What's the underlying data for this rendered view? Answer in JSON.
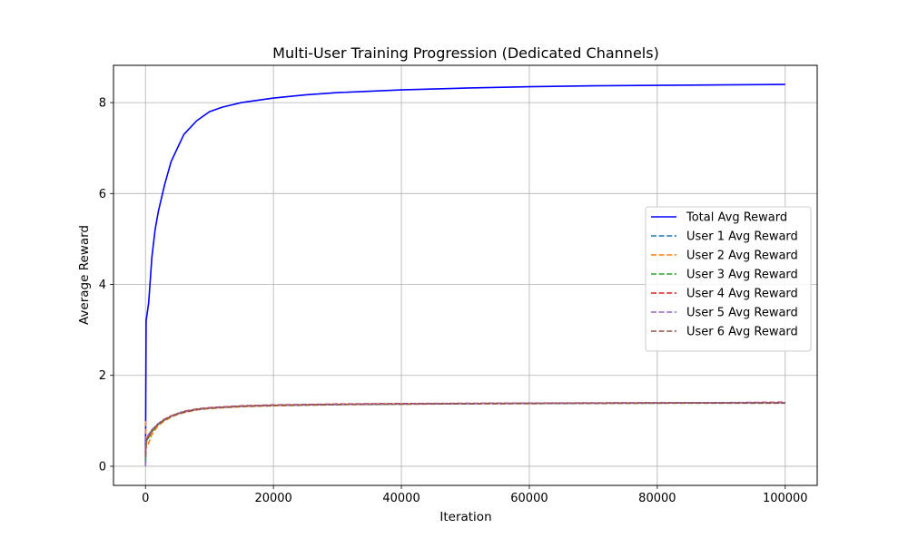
{
  "chart_data": {
    "type": "line",
    "title": "Multi-User Training Progression (Dedicated Channels)",
    "xlabel": "Iteration",
    "ylabel": "Average Reward",
    "xlim": [
      -5000,
      105000
    ],
    "ylim": [
      -0.42,
      8.82
    ],
    "xticks": [
      0,
      20000,
      40000,
      60000,
      80000,
      100000
    ],
    "yticks": [
      0,
      2,
      4,
      6,
      8
    ],
    "grid": true,
    "legend_position": "center-right",
    "series": [
      {
        "name": "Total Avg Reward",
        "color": "#0000ff",
        "style": "solid",
        "x": [
          0,
          100,
          200,
          500,
          1000,
          1500,
          2000,
          3000,
          4000,
          5000,
          6000,
          8000,
          10000,
          12000,
          15000,
          20000,
          25000,
          30000,
          40000,
          50000,
          60000,
          70000,
          80000,
          90000,
          100000
        ],
        "y": [
          0.05,
          3.2,
          3.3,
          3.6,
          4.6,
          5.2,
          5.6,
          6.2,
          6.7,
          7.0,
          7.3,
          7.6,
          7.8,
          7.9,
          8.0,
          8.1,
          8.17,
          8.22,
          8.28,
          8.32,
          8.35,
          8.37,
          8.38,
          8.39,
          8.4
        ]
      },
      {
        "name": "User 1 Avg Reward",
        "color": "#1f77b4",
        "style": "dashed",
        "x": [
          0,
          100,
          300,
          600,
          1000,
          2000,
          3000,
          4000,
          5000,
          6000,
          8000,
          10000,
          15000,
          20000,
          30000,
          40000,
          50000,
          60000,
          70000,
          80000,
          90000,
          100000
        ],
        "y": [
          0.05,
          0.55,
          0.6,
          0.68,
          0.78,
          0.93,
          1.03,
          1.1,
          1.16,
          1.2,
          1.25,
          1.28,
          1.32,
          1.34,
          1.36,
          1.37,
          1.38,
          1.385,
          1.39,
          1.39,
          1.4,
          1.4
        ]
      },
      {
        "name": "User 2 Avg Reward",
        "color": "#ff7f0e",
        "style": "dashed",
        "x": [
          0,
          100,
          300,
          600,
          1000,
          2000,
          3000,
          4000,
          5000,
          6000,
          8000,
          10000,
          15000,
          20000,
          30000,
          40000,
          50000,
          60000,
          70000,
          80000,
          90000,
          100000
        ],
        "y": [
          1.0,
          0.4,
          0.45,
          0.55,
          0.7,
          0.9,
          1.0,
          1.08,
          1.14,
          1.18,
          1.24,
          1.27,
          1.31,
          1.33,
          1.355,
          1.365,
          1.375,
          1.38,
          1.385,
          1.39,
          1.39,
          1.39
        ]
      },
      {
        "name": "User 3 Avg Reward",
        "color": "#2ca02c",
        "style": "dashed",
        "x": [
          0,
          100,
          300,
          600,
          1000,
          2000,
          3000,
          4000,
          5000,
          6000,
          8000,
          10000,
          15000,
          20000,
          30000,
          40000,
          50000,
          60000,
          70000,
          80000,
          90000,
          100000
        ],
        "y": [
          0.1,
          0.5,
          0.58,
          0.66,
          0.76,
          0.92,
          1.02,
          1.1,
          1.15,
          1.2,
          1.25,
          1.28,
          1.32,
          1.34,
          1.36,
          1.37,
          1.38,
          1.385,
          1.39,
          1.39,
          1.395,
          1.4
        ]
      },
      {
        "name": "User 4 Avg Reward",
        "color": "#d62728",
        "style": "dashed",
        "x": [
          0,
          100,
          300,
          600,
          1000,
          2000,
          3000,
          4000,
          5000,
          6000,
          8000,
          10000,
          15000,
          20000,
          30000,
          40000,
          50000,
          60000,
          70000,
          80000,
          90000,
          100000
        ],
        "y": [
          0.3,
          0.6,
          0.63,
          0.7,
          0.8,
          0.94,
          1.04,
          1.11,
          1.16,
          1.21,
          1.26,
          1.29,
          1.33,
          1.35,
          1.37,
          1.38,
          1.385,
          1.39,
          1.395,
          1.4,
          1.4,
          1.41
        ]
      },
      {
        "name": "User 5 Avg Reward",
        "color": "#9467bd",
        "style": "dashed",
        "x": [
          0,
          100,
          300,
          600,
          1000,
          2000,
          3000,
          4000,
          5000,
          6000,
          8000,
          10000,
          15000,
          20000,
          30000,
          40000,
          50000,
          60000,
          70000,
          80000,
          90000,
          100000
        ],
        "y": [
          0.0,
          0.65,
          0.67,
          0.72,
          0.8,
          0.94,
          1.03,
          1.1,
          1.16,
          1.2,
          1.25,
          1.28,
          1.32,
          1.34,
          1.36,
          1.37,
          1.38,
          1.385,
          1.39,
          1.395,
          1.4,
          1.4
        ]
      },
      {
        "name": "User 6 Avg Reward",
        "color": "#8c564b",
        "style": "dashed",
        "x": [
          0,
          100,
          300,
          600,
          1000,
          2000,
          3000,
          4000,
          5000,
          6000,
          8000,
          10000,
          15000,
          20000,
          30000,
          40000,
          50000,
          60000,
          70000,
          80000,
          90000,
          100000
        ],
        "y": [
          0.2,
          0.58,
          0.62,
          0.68,
          0.78,
          0.93,
          1.02,
          1.1,
          1.15,
          1.19,
          1.25,
          1.28,
          1.32,
          1.34,
          1.36,
          1.37,
          1.375,
          1.38,
          1.385,
          1.39,
          1.39,
          1.39
        ]
      }
    ]
  }
}
